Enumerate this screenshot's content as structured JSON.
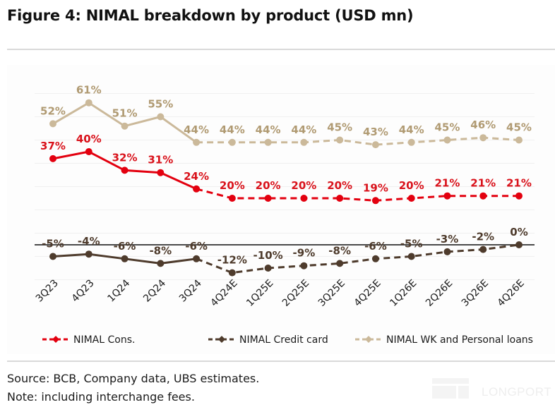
{
  "figure": {
    "title": "Figure 4: NIMAL breakdown by product (USD mn)",
    "source": "Source: BCB, Company data, UBS estimates.",
    "note": "Note: including interchange fees.",
    "watermark": "LONGPORT"
  },
  "chart_data": {
    "type": "line",
    "title": "Figure 4: NIMAL breakdown by product (USD mn)",
    "xlabel": "",
    "ylabel": "",
    "categories": [
      "3Q23",
      "4Q23",
      "1Q24",
      "2Q24",
      "3Q24",
      "4Q24E",
      "1Q25E",
      "2Q25E",
      "3Q25E",
      "4Q25E",
      "1Q26E",
      "2Q26E",
      "3Q26E",
      "4Q26E"
    ],
    "actual_count": 5,
    "ylim": [
      -15,
      65
    ],
    "y_unit": "%",
    "grid": true,
    "gridlines": [
      -15,
      -5,
      5,
      15,
      25,
      35,
      45,
      55,
      65
    ],
    "zero_line": true,
    "y_axis_labels_shown": false,
    "legend_position": "bottom",
    "series": [
      {
        "name": "NIMAL Cons.",
        "color": "#e3000f",
        "label_color": "#d9121b",
        "values": [
          37,
          40,
          32,
          31,
          24,
          20,
          20,
          20,
          20,
          19,
          20,
          21,
          21,
          21
        ],
        "labels": [
          "37%",
          "40%",
          "32%",
          "31%",
          "24%",
          "20%",
          "20%",
          "20%",
          "20%",
          "19%",
          "20%",
          "21%",
          "21%",
          "21%"
        ],
        "estimate_style": "dashed"
      },
      {
        "name": "NIMAL Credit card",
        "color": "#4e3b2c",
        "label_color": "#4e3b2c",
        "values": [
          -5,
          -4,
          -6,
          -8,
          -6,
          -12,
          -10,
          -9,
          -8,
          -6,
          -5,
          -3,
          -2,
          0
        ],
        "labels": [
          "-5%",
          "-4%",
          "-6%",
          "-8%",
          "-6%",
          "-12%",
          "-10%",
          "-9%",
          "-8%",
          "-6%",
          "-5%",
          "-3%",
          "-2%",
          "0%"
        ],
        "estimate_style": "dashed"
      },
      {
        "name": "NIMAL WK and Personal loans",
        "color": "#cbb99a",
        "label_color": "#b09a72",
        "values": [
          52,
          61,
          51,
          55,
          44,
          44,
          44,
          44,
          45,
          43,
          44,
          45,
          46,
          45
        ],
        "labels": [
          "52%",
          "61%",
          "51%",
          "55%",
          "44%",
          "44%",
          "44%",
          "44%",
          "45%",
          "43%",
          "44%",
          "45%",
          "46%",
          "45%"
        ],
        "estimate_style": "dashed"
      }
    ]
  }
}
